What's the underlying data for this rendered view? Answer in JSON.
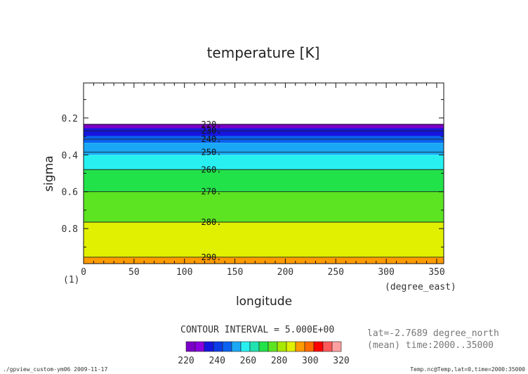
{
  "chart_data": {
    "type": "heatmap",
    "title": "temperature [K]",
    "xlabel": "longitude",
    "ylabel": "sigma",
    "x_units": "(degree_east)",
    "y_panel_label": "(1)",
    "xlim": [
      0,
      357
    ],
    "ylim": [
      0.01,
      0.99
    ],
    "x_ticks": [
      0,
      50,
      100,
      150,
      200,
      250,
      300,
      350
    ],
    "y_ticks": [
      0.2,
      0.4,
      0.6,
      0.8
    ],
    "x_tick_labels": [
      "0",
      "50",
      "100",
      "150",
      "200",
      "250",
      "300",
      "350"
    ],
    "y_tick_labels": [
      "0.2",
      "0.4",
      "0.6",
      "0.8"
    ],
    "contour_levels": [
      {
        "value": 220,
        "label": "220.",
        "sigma": 0.235
      },
      {
        "value": 230,
        "label": "230.",
        "sigma": 0.27
      },
      {
        "value": 240,
        "label": "240.",
        "sigma": 0.315
      },
      {
        "value": 250,
        "label": "250.",
        "sigma": 0.385
      },
      {
        "value": 260,
        "label": "260.",
        "sigma": 0.48
      },
      {
        "value": 270,
        "label": "270.",
        "sigma": 0.6
      },
      {
        "value": 280,
        "label": "280.",
        "sigma": 0.765
      },
      {
        "value": 290,
        "label": "290.",
        "sigma": 0.955
      }
    ],
    "fill_bands": [
      {
        "sigma_top": 0.232,
        "sigma_bottom": 0.256,
        "color": "#7a00c8"
      },
      {
        "sigma_top": 0.256,
        "sigma_bottom": 0.298,
        "color": "#1515e0"
      },
      {
        "sigma_top": 0.298,
        "sigma_bottom": 0.335,
        "color": "#0a62f0"
      },
      {
        "sigma_top": 0.335,
        "sigma_bottom": 0.4,
        "color": "#1aa8f5"
      },
      {
        "sigma_top": 0.4,
        "sigma_bottom": 0.48,
        "color": "#28f0f0"
      },
      {
        "sigma_top": 0.48,
        "sigma_bottom": 0.6,
        "color": "#22e24a"
      },
      {
        "sigma_top": 0.6,
        "sigma_bottom": 0.765,
        "color": "#5ce422"
      },
      {
        "sigma_top": 0.765,
        "sigma_bottom": 0.955,
        "color": "#e0f000"
      },
      {
        "sigma_top": 0.955,
        "sigma_bottom": 0.99,
        "color": "#ff9a00"
      }
    ],
    "contour_interval_text": "CONTOUR INTERVAL = 5.000E+00",
    "info_lines": [
      "lat=-2.7689 degree_north",
      "(mean) time:2000..35000"
    ],
    "colorbar": {
      "colors": [
        "#7a00c8",
        "#8a00e0",
        "#1515e0",
        "#0a3ce8",
        "#0a62f0",
        "#1aa8f5",
        "#28f0f0",
        "#22e2b0",
        "#22e24a",
        "#5ce422",
        "#a8e800",
        "#e0f000",
        "#ff9a00",
        "#ff6a00",
        "#ff0000",
        "#ff5a5a",
        "#ffa0a0"
      ],
      "tick_labels": [
        "220",
        "240",
        "260",
        "280",
        "300",
        "320"
      ]
    }
  },
  "footer": {
    "left": "./gpview_custom-ym06   2009-11-17",
    "right": "Temp.nc@Temp,lat=0,time=2000:35000"
  }
}
